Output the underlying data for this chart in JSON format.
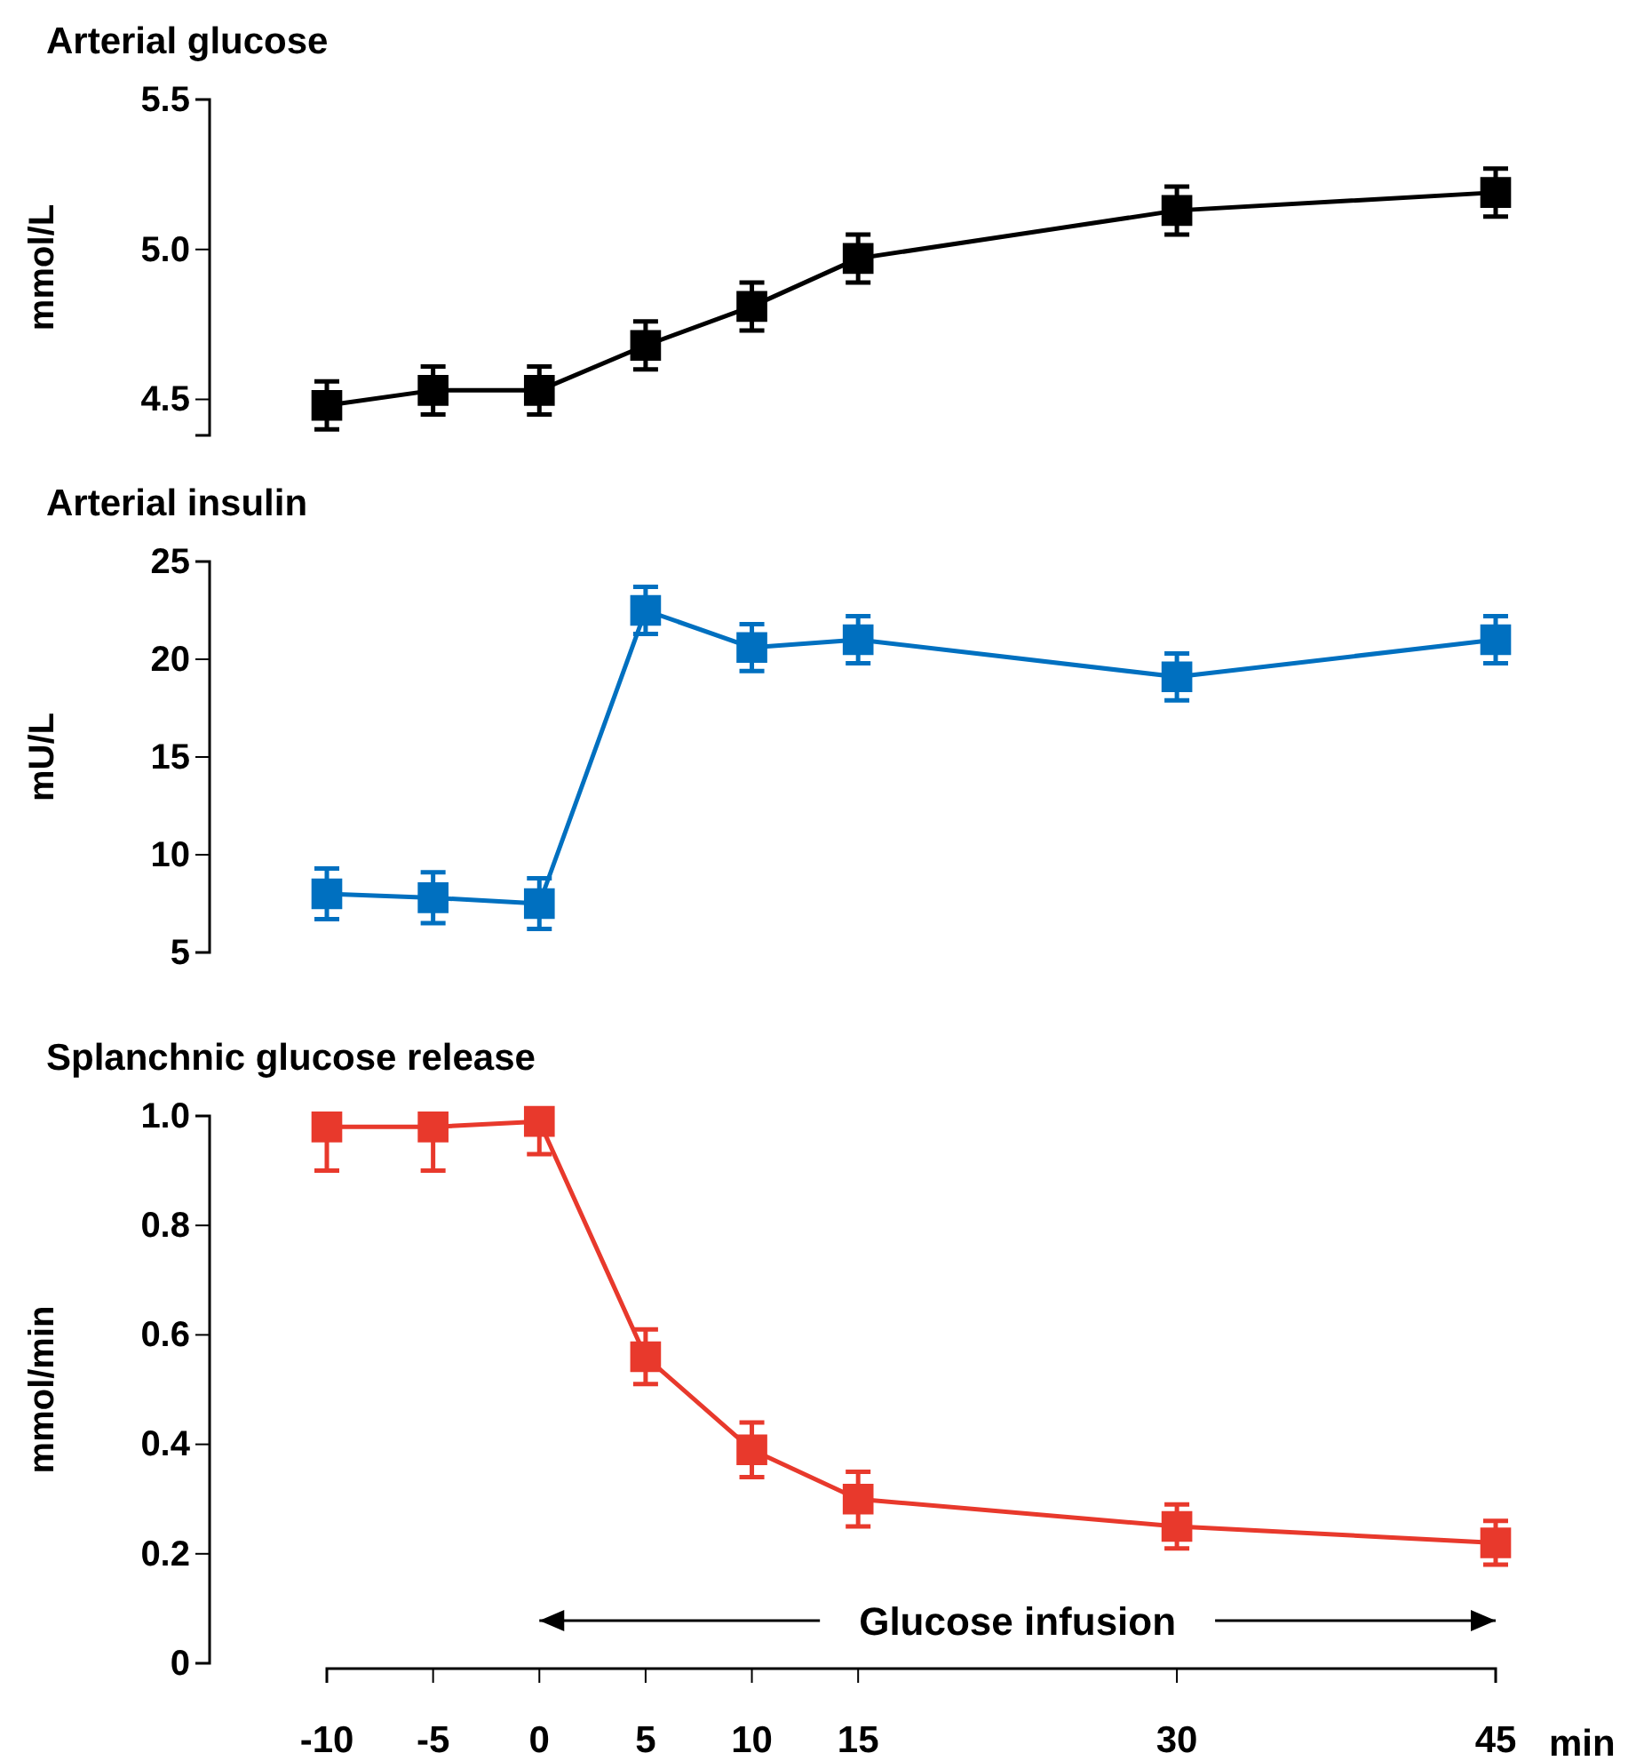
{
  "chart_data": [
    {
      "type": "line",
      "title": "Arterial glucose",
      "ylabel": "mmol/L",
      "x": [
        -10,
        -5,
        0,
        5,
        10,
        15,
        30,
        45
      ],
      "xlim": [
        -10,
        45
      ],
      "ylim": [
        4.38,
        5.5
      ],
      "yticks": [
        4.5,
        {
          "value": 5,
          "label": "5.0"
        },
        5.5
      ],
      "tick_labels": "y",
      "marker": "square",
      "series": [
        {
          "color": "#000000",
          "values": [
            4.48,
            4.53,
            4.53,
            4.68,
            4.81,
            4.97,
            5.13,
            5.19
          ],
          "errors": [
            0.08,
            0.08,
            0.08,
            0.08,
            0.08,
            0.08,
            0.08,
            0.08
          ]
        }
      ]
    },
    {
      "type": "line",
      "title": "Arterial insulin",
      "ylabel": "mU/L",
      "x": [
        -10,
        -5,
        0,
        5,
        10,
        15,
        30,
        45
      ],
      "xlim": [
        -10,
        45
      ],
      "ylim": [
        5,
        25
      ],
      "yticks": [
        5,
        10,
        15,
        20,
        25
      ],
      "tick_labels": "y",
      "marker": "square",
      "series": [
        {
          "color": "#0070c0",
          "values": [
            8.0,
            7.8,
            7.5,
            22.5,
            20.6,
            21.0,
            19.1,
            21.0
          ],
          "errors": [
            1.3,
            1.3,
            1.3,
            1.2,
            1.2,
            1.2,
            1.2,
            1.2
          ]
        }
      ]
    },
    {
      "type": "line",
      "title": "Splanchnic glucose release",
      "ylabel": "mmol/min",
      "xlabel": "min",
      "x": [
        -10,
        -5,
        0,
        5,
        10,
        15,
        30,
        45
      ],
      "xlim": [
        -10,
        45
      ],
      "xticks": [
        -10,
        -5,
        0,
        5,
        10,
        15,
        30,
        45
      ],
      "ylim": [
        0,
        1
      ],
      "yticks": [
        0,
        0.2,
        0.4,
        0.6,
        0.8,
        {
          "value": 1,
          "label": "1.0"
        }
      ],
      "marker": "square",
      "annotations": [
        "Glucose infusion"
      ],
      "series": [
        {
          "color": "#e8392c",
          "values": [
            0.98,
            0.98,
            0.99,
            0.56,
            0.39,
            0.3,
            0.25,
            0.22
          ],
          "errors": [
            [
              0.9,
              0.98
            ],
            [
              0.9,
              0.98
            ],
            [
              0.93,
              0.99
            ],
            0.05,
            0.05,
            0.05,
            0.04,
            0.04
          ]
        }
      ]
    }
  ]
}
